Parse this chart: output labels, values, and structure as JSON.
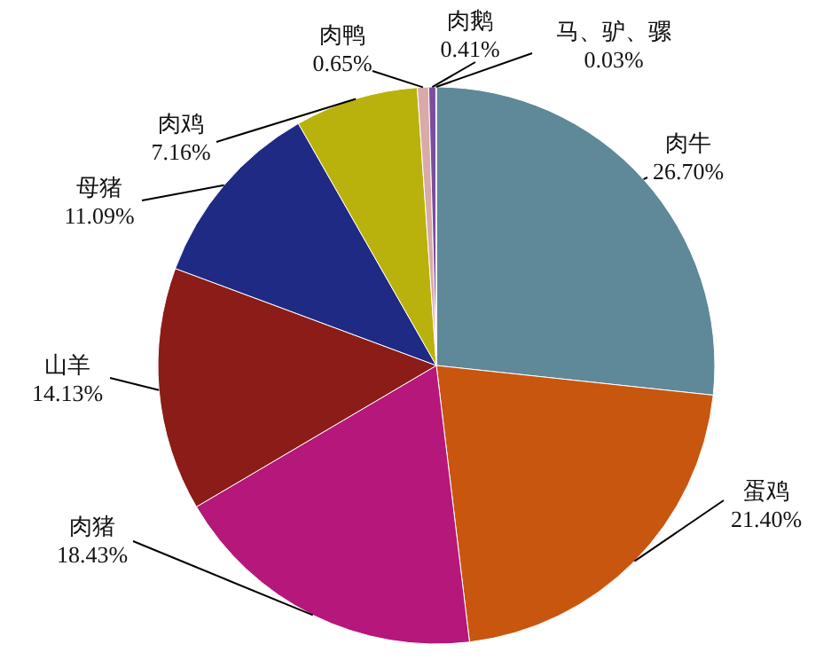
{
  "chart_data": {
    "type": "pie",
    "categories": [
      "肉牛",
      "蛋鸡",
      "肉猪",
      "山羊",
      "母猪",
      "肉鸡",
      "肉鸭",
      "肉鹅",
      "马、驴、骡"
    ],
    "values": [
      26.7,
      21.4,
      18.43,
      14.13,
      11.09,
      7.16,
      0.65,
      0.41,
      0.03
    ],
    "value_labels": [
      "26.70%",
      "21.40%",
      "18.43%",
      "14.13%",
      "11.09%",
      "7.16%",
      "0.65%",
      "0.41%",
      "0.03%"
    ],
    "colors": [
      "#5f8898",
      "#c8560e",
      "#b5177a",
      "#8c1c17",
      "#1e2a84",
      "#b9b20c",
      "#d9aaa8",
      "#7b4d9c",
      "#3b3fa8"
    ],
    "legend": false
  }
}
